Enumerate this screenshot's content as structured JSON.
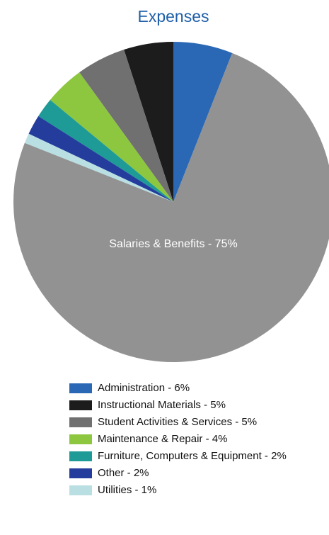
{
  "chart_data": {
    "type": "pie",
    "title": "Expenses",
    "categories": [
      "Administration - 6%",
      "Instructional Materials - 5%",
      "Student Activities & Services - 5%",
      "Maintenance & Repair - 4%",
      "Furniture, Computers & Equipment - 2%",
      "Other - 2%",
      "Utilities - 1%",
      "Salaries & Benefits - 75%"
    ],
    "values": [
      6,
      5,
      5,
      4,
      2,
      2,
      1,
      75
    ],
    "colors": [
      "#2a68b5",
      "#1c1c1c",
      "#707070",
      "#8dc63f",
      "#1e9a97",
      "#243d9c",
      "#b9dfe3",
      "#919291"
    ],
    "label_placement": [
      "legend",
      "legend",
      "legend",
      "legend",
      "legend",
      "legend",
      "legend",
      "inside"
    ],
    "start_angle": 21.6,
    "direction": "counterclockwise"
  }
}
